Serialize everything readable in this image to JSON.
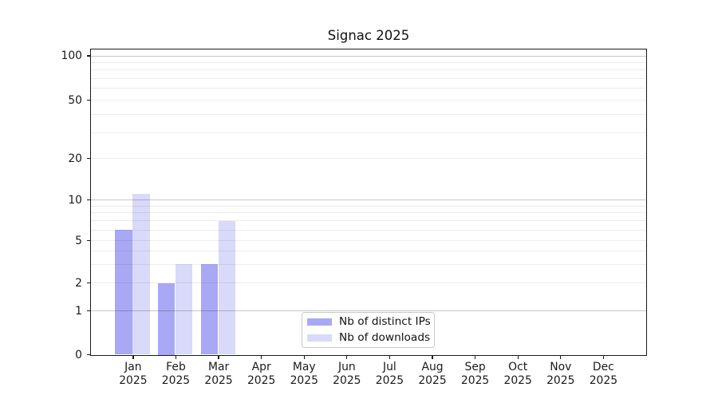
{
  "chart_data": {
    "type": "bar",
    "title": "Signac 2025",
    "categories": [
      {
        "month": "Jan",
        "year": "2025"
      },
      {
        "month": "Feb",
        "year": "2025"
      },
      {
        "month": "Mar",
        "year": "2025"
      },
      {
        "month": "Apr",
        "year": "2025"
      },
      {
        "month": "May",
        "year": "2025"
      },
      {
        "month": "Jun",
        "year": "2025"
      },
      {
        "month": "Jul",
        "year": "2025"
      },
      {
        "month": "Aug",
        "year": "2025"
      },
      {
        "month": "Sep",
        "year": "2025"
      },
      {
        "month": "Oct",
        "year": "2025"
      },
      {
        "month": "Nov",
        "year": "2025"
      },
      {
        "month": "Dec",
        "year": "2025"
      }
    ],
    "series": [
      {
        "name": "Nb of distinct IPs",
        "color": "#a8a8f5",
        "values": [
          6,
          2,
          3,
          0,
          0,
          0,
          0,
          0,
          0,
          0,
          0,
          0
        ]
      },
      {
        "name": "Nb of downloads",
        "color": "#d9d9f9",
        "values": [
          11,
          3,
          7,
          0,
          0,
          0,
          0,
          0,
          0,
          0,
          0,
          0
        ]
      }
    ],
    "xlabel": "",
    "ylabel": "",
    "yscale": "log1p",
    "ylim": [
      0,
      112
    ],
    "yticks": [
      0,
      1,
      2,
      5,
      10,
      20,
      50,
      100
    ],
    "major_gridlines": [
      1,
      10,
      100
    ],
    "minor_gridlines": [
      2,
      3,
      4,
      5,
      6,
      7,
      8,
      9,
      20,
      30,
      40,
      50,
      60,
      70,
      80,
      90
    ],
    "grid": true,
    "legend_position": "lower center"
  },
  "colors": {
    "background": "#ffffff",
    "axis": "#1a1a1a",
    "grid_major": "rgba(0,0,0,0.22)",
    "grid_minor": "rgba(0,0,0,0.075)",
    "legend_border": "#c9c9c9"
  }
}
